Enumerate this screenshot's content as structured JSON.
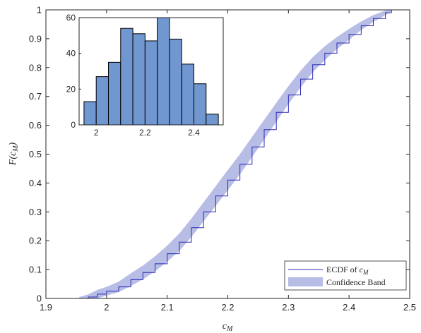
{
  "chart_data": [
    {
      "type": "line",
      "xlabel": "c_M",
      "ylabel": "F(c_M)",
      "xlim": [
        1.9,
        2.5
      ],
      "ylim": [
        0,
        1
      ],
      "xticks": [
        "1.9",
        "2",
        "2.1",
        "2.2",
        "2.3",
        "2.4",
        "2.5"
      ],
      "yticks": [
        "0",
        "0.1",
        "0.2",
        "0.3",
        "0.4",
        "0.5",
        "0.6",
        "0.7",
        "0.8",
        "0.9",
        "1"
      ],
      "grid": false,
      "legend_position": "bottom-right",
      "legend": [
        {
          "label_main": "ECDF of ",
          "label_math": "c",
          "label_sub": "M",
          "kind": "line"
        },
        {
          "label_main": "Confidence Band",
          "kind": "band"
        }
      ],
      "colors": {
        "ecdf": "#2b2bb5",
        "band": "#b8bde6",
        "hist": "#7097cf"
      },
      "series": [
        {
          "name": "ECDF of c_M",
          "x": [
            1.955,
            1.97,
            1.985,
            2.0,
            2.02,
            2.04,
            2.06,
            2.08,
            2.1,
            2.12,
            2.14,
            2.16,
            2.18,
            2.2,
            2.22,
            2.24,
            2.26,
            2.28,
            2.3,
            2.32,
            2.34,
            2.36,
            2.38,
            2.4,
            2.42,
            2.44,
            2.46,
            2.47
          ],
          "y": [
            0.0,
            0.005,
            0.015,
            0.025,
            0.04,
            0.065,
            0.09,
            0.12,
            0.155,
            0.195,
            0.245,
            0.3,
            0.355,
            0.41,
            0.465,
            0.525,
            0.585,
            0.645,
            0.705,
            0.76,
            0.81,
            0.85,
            0.885,
            0.915,
            0.945,
            0.97,
            0.99,
            1.0
          ]
        },
        {
          "name": "Confidence Band",
          "x": [
            1.955,
            1.97,
            1.985,
            2.0,
            2.02,
            2.04,
            2.06,
            2.08,
            2.1,
            2.12,
            2.14,
            2.16,
            2.18,
            2.2,
            2.22,
            2.24,
            2.26,
            2.28,
            2.3,
            2.32,
            2.34,
            2.36,
            2.38,
            2.4,
            2.42,
            2.44,
            2.46,
            2.47
          ],
          "lower": [
            0.0,
            0.0,
            0.0,
            0.01,
            0.022,
            0.043,
            0.066,
            0.094,
            0.127,
            0.165,
            0.213,
            0.267,
            0.321,
            0.375,
            0.43,
            0.49,
            0.551,
            0.612,
            0.674,
            0.731,
            0.784,
            0.826,
            0.864,
            0.896,
            0.93,
            0.958,
            0.982,
            0.995
          ],
          "upper": [
            0.005,
            0.014,
            0.03,
            0.04,
            0.058,
            0.087,
            0.114,
            0.146,
            0.183,
            0.225,
            0.277,
            0.333,
            0.389,
            0.445,
            0.5,
            0.56,
            0.619,
            0.678,
            0.736,
            0.789,
            0.836,
            0.874,
            0.906,
            0.934,
            0.96,
            0.982,
            0.998,
            1.0
          ]
        }
      ]
    },
    {
      "type": "bar",
      "inset": true,
      "bins": [
        [
          1.95,
          2.0
        ],
        [
          2.0,
          2.05
        ],
        [
          2.05,
          2.1
        ],
        [
          2.1,
          2.15
        ],
        [
          2.15,
          2.2
        ],
        [
          2.2,
          2.25
        ],
        [
          2.25,
          2.3
        ],
        [
          2.3,
          2.35
        ],
        [
          2.35,
          2.4
        ],
        [
          2.4,
          2.45
        ],
        [
          2.45,
          2.5
        ]
      ],
      "values": [
        13,
        27,
        35,
        54,
        51,
        47,
        60,
        48,
        34,
        23,
        6
      ],
      "xlim": [
        1.93,
        2.52
      ],
      "ylim": [
        0,
        60
      ],
      "xticks": [
        "2",
        "2.2",
        "2.4"
      ],
      "yticks": [
        "0",
        "20",
        "40",
        "60"
      ]
    }
  ]
}
